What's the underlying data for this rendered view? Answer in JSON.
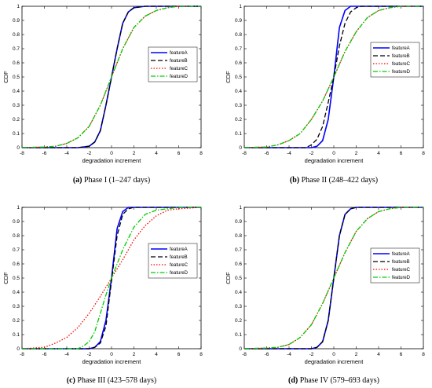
{
  "chart_data": [
    {
      "type": "line",
      "caption_label": "(a)",
      "caption_text": " Phase I (1–247 days)",
      "xlabel": "degradation increment",
      "ylabel": "CDF",
      "xlim": [
        -8,
        8
      ],
      "ylim": [
        0,
        1
      ],
      "xticks": [
        "-8",
        "-6",
        "-4",
        "-2",
        "0",
        "2",
        "4",
        "6",
        "8"
      ],
      "yticks": [
        "0",
        "0.1",
        "0.2",
        "0.3",
        "0.4",
        "0.5",
        "0.6",
        "0.7",
        "0.8",
        "0.9",
        "1"
      ],
      "grid": false,
      "legend_position": "right",
      "series": [
        {
          "name": "featureA",
          "color": "#0000ff",
          "style": "solid",
          "values": [
            [
              -8,
              0
            ],
            [
              -3,
              0
            ],
            [
              -2,
              0.01
            ],
            [
              -1.5,
              0.04
            ],
            [
              -1,
              0.12
            ],
            [
              -0.5,
              0.3
            ],
            [
              0,
              0.5
            ],
            [
              0.5,
              0.7
            ],
            [
              1,
              0.88
            ],
            [
              1.5,
              0.96
            ],
            [
              2,
              0.99
            ],
            [
              3,
              1
            ],
            [
              8,
              1
            ]
          ]
        },
        {
          "name": "featureB",
          "color": "#000000",
          "style": "dashed",
          "values": [
            [
              -8,
              0
            ],
            [
              -3,
              0
            ],
            [
              -2,
              0.01
            ],
            [
              -1.5,
              0.04
            ],
            [
              -1,
              0.12
            ],
            [
              -0.5,
              0.3
            ],
            [
              0,
              0.5
            ],
            [
              0.5,
              0.7
            ],
            [
              1,
              0.88
            ],
            [
              1.5,
              0.96
            ],
            [
              2,
              0.99
            ],
            [
              3,
              1
            ],
            [
              8,
              1
            ]
          ]
        },
        {
          "name": "featureC",
          "color": "#ff0000",
          "style": "dotted",
          "values": [
            [
              -8,
              0
            ],
            [
              -6,
              0.005
            ],
            [
              -5,
              0.01
            ],
            [
              -4,
              0.03
            ],
            [
              -3,
              0.07
            ],
            [
              -2,
              0.15
            ],
            [
              -1,
              0.3
            ],
            [
              0,
              0.5
            ],
            [
              1,
              0.7
            ],
            [
              2,
              0.85
            ],
            [
              3,
              0.93
            ],
            [
              4,
              0.97
            ],
            [
              5,
              0.99
            ],
            [
              6,
              1
            ],
            [
              8,
              1
            ]
          ]
        },
        {
          "name": "featureD",
          "color": "#00cc00",
          "style": "dashdot",
          "values": [
            [
              -8,
              0
            ],
            [
              -6,
              0.005
            ],
            [
              -5,
              0.01
            ],
            [
              -4,
              0.03
            ],
            [
              -3,
              0.07
            ],
            [
              -2,
              0.15
            ],
            [
              -1,
              0.3
            ],
            [
              0,
              0.5
            ],
            [
              1,
              0.7
            ],
            [
              2,
              0.85
            ],
            [
              3,
              0.93
            ],
            [
              4,
              0.97
            ],
            [
              5,
              0.99
            ],
            [
              6,
              1
            ],
            [
              8,
              1
            ]
          ]
        }
      ]
    },
    {
      "type": "line",
      "caption_label": "(b)",
      "caption_text": " Phase II (248–422 days)",
      "xlabel": "degradation increment",
      "ylabel": "CDF",
      "xlim": [
        -8,
        8
      ],
      "ylim": [
        0,
        1
      ],
      "xticks": [
        "-8",
        "-6",
        "-4",
        "-2",
        "0",
        "2",
        "4",
        "6",
        "8"
      ],
      "yticks": [
        "0",
        "0.1",
        "0.2",
        "0.3",
        "0.4",
        "0.5",
        "0.6",
        "0.7",
        "0.8",
        "0.9",
        "1"
      ],
      "grid": false,
      "legend_position": "top-right",
      "series": [
        {
          "name": "featureA",
          "color": "#0000ff",
          "style": "solid",
          "values": [
            [
              -8,
              0
            ],
            [
              -2,
              0
            ],
            [
              -1.5,
              0.01
            ],
            [
              -1,
              0.05
            ],
            [
              -0.5,
              0.2
            ],
            [
              0,
              0.5
            ],
            [
              0.5,
              0.85
            ],
            [
              1,
              0.97
            ],
            [
              1.5,
              1
            ],
            [
              8,
              1
            ]
          ]
        },
        {
          "name": "featureB",
          "color": "#000000",
          "style": "dashed",
          "values": [
            [
              -8,
              0
            ],
            [
              -2.5,
              0
            ],
            [
              -2,
              0.02
            ],
            [
              -1.5,
              0.06
            ],
            [
              -1,
              0.15
            ],
            [
              -0.5,
              0.32
            ],
            [
              0,
              0.5
            ],
            [
              0.5,
              0.72
            ],
            [
              1,
              0.88
            ],
            [
              1.5,
              0.96
            ],
            [
              2,
              0.99
            ],
            [
              2.5,
              1
            ],
            [
              8,
              1
            ]
          ]
        },
        {
          "name": "featureC",
          "color": "#ff0000",
          "style": "dotted",
          "values": [
            [
              -8,
              0
            ],
            [
              -6,
              0.005
            ],
            [
              -5,
              0.02
            ],
            [
              -4,
              0.05
            ],
            [
              -3,
              0.1
            ],
            [
              -2,
              0.2
            ],
            [
              -1,
              0.33
            ],
            [
              0,
              0.5
            ],
            [
              1,
              0.68
            ],
            [
              2,
              0.82
            ],
            [
              3,
              0.92
            ],
            [
              4,
              0.97
            ],
            [
              5,
              0.99
            ],
            [
              6,
              1
            ],
            [
              8,
              1
            ]
          ]
        },
        {
          "name": "featureD",
          "color": "#00cc00",
          "style": "dashdot",
          "values": [
            [
              -8,
              0
            ],
            [
              -6,
              0.005
            ],
            [
              -5,
              0.02
            ],
            [
              -4,
              0.05
            ],
            [
              -3,
              0.1
            ],
            [
              -2,
              0.2
            ],
            [
              -1,
              0.33
            ],
            [
              0,
              0.5
            ],
            [
              1,
              0.68
            ],
            [
              2,
              0.82
            ],
            [
              3,
              0.92
            ],
            [
              4,
              0.97
            ],
            [
              5,
              0.99
            ],
            [
              6,
              1
            ],
            [
              8,
              1
            ]
          ]
        }
      ]
    },
    {
      "type": "line",
      "caption_label": "(c)",
      "caption_text": " Phase III (423–578 days)",
      "xlabel": "degradation increment",
      "ylabel": "CDF",
      "xlim": [
        -8,
        8
      ],
      "ylim": [
        0,
        1
      ],
      "xticks": [
        "-8",
        "-6",
        "-4",
        "-2",
        "0",
        "2",
        "4",
        "6",
        "8"
      ],
      "yticks": [
        "0",
        "0.1",
        "0.2",
        "0.3",
        "0.4",
        "0.5",
        "0.6",
        "0.7",
        "0.8",
        "0.9",
        "1"
      ],
      "grid": false,
      "legend_position": "top-right",
      "series": [
        {
          "name": "featureA",
          "color": "#0000ff",
          "style": "solid",
          "values": [
            [
              -8,
              0
            ],
            [
              -2,
              0
            ],
            [
              -1.5,
              0.01
            ],
            [
              -1,
              0.05
            ],
            [
              -0.5,
              0.2
            ],
            [
              0,
              0.5
            ],
            [
              0.5,
              0.85
            ],
            [
              1,
              0.97
            ],
            [
              1.5,
              1
            ],
            [
              8,
              1
            ]
          ]
        },
        {
          "name": "featureB",
          "color": "#000000",
          "style": "dashed",
          "values": [
            [
              -8,
              0
            ],
            [
              -2,
              0
            ],
            [
              -1.5,
              0.01
            ],
            [
              -1,
              0.04
            ],
            [
              -0.5,
              0.16
            ],
            [
              0,
              0.48
            ],
            [
              0.5,
              0.8
            ],
            [
              1,
              0.95
            ],
            [
              1.5,
              0.99
            ],
            [
              2,
              1
            ],
            [
              8,
              1
            ]
          ]
        },
        {
          "name": "featureC",
          "color": "#ff0000",
          "style": "dotted",
          "values": [
            [
              -8,
              0
            ],
            [
              -7,
              0.005
            ],
            [
              -6,
              0.01
            ],
            [
              -5,
              0.04
            ],
            [
              -4,
              0.08
            ],
            [
              -3,
              0.15
            ],
            [
              -2,
              0.25
            ],
            [
              -1,
              0.37
            ],
            [
              0,
              0.5
            ],
            [
              1,
              0.63
            ],
            [
              2,
              0.77
            ],
            [
              3,
              0.87
            ],
            [
              4,
              0.94
            ],
            [
              5,
              0.98
            ],
            [
              6,
              0.99
            ],
            [
              8,
              1
            ]
          ]
        },
        {
          "name": "featureD",
          "color": "#00cc00",
          "style": "dashdot",
          "values": [
            [
              -8,
              0
            ],
            [
              -3,
              0
            ],
            [
              -2.5,
              0.02
            ],
            [
              -2,
              0.05
            ],
            [
              -1.5,
              0.12
            ],
            [
              -1,
              0.25
            ],
            [
              -0.5,
              0.38
            ],
            [
              0,
              0.5
            ],
            [
              1,
              0.7
            ],
            [
              2,
              0.86
            ],
            [
              3,
              0.95
            ],
            [
              4,
              0.98
            ],
            [
              5,
              0.99
            ],
            [
              6,
              1
            ],
            [
              8,
              1
            ]
          ]
        }
      ]
    },
    {
      "type": "line",
      "caption_label": "(d)",
      "caption_text": " Phase IV (579–693 days)",
      "xlabel": "degradation increment",
      "ylabel": "CDF",
      "xlim": [
        -8,
        8
      ],
      "ylim": [
        0,
        1
      ],
      "xticks": [
        "-8",
        "-6",
        "-4",
        "-2",
        "0",
        "2",
        "4",
        "6",
        "8"
      ],
      "yticks": [
        "0",
        "0.1",
        "0.2",
        "0.3",
        "0.4",
        "0.5",
        "0.6",
        "0.7",
        "0.8",
        "0.9",
        "1"
      ],
      "grid": false,
      "legend_position": "right",
      "series": [
        {
          "name": "featureA",
          "color": "#0000ff",
          "style": "solid",
          "values": [
            [
              -8,
              0
            ],
            [
              -2,
              0
            ],
            [
              -1.5,
              0.01
            ],
            [
              -1,
              0.05
            ],
            [
              -0.5,
              0.2
            ],
            [
              0,
              0.5
            ],
            [
              0.5,
              0.8
            ],
            [
              1,
              0.95
            ],
            [
              1.5,
              0.99
            ],
            [
              2,
              1
            ],
            [
              8,
              1
            ]
          ]
        },
        {
          "name": "featureB",
          "color": "#000000",
          "style": "dashed",
          "values": [
            [
              -8,
              0
            ],
            [
              -2,
              0
            ],
            [
              -1.5,
              0.01
            ],
            [
              -1,
              0.05
            ],
            [
              -0.5,
              0.2
            ],
            [
              0,
              0.5
            ],
            [
              0.5,
              0.8
            ],
            [
              1,
              0.95
            ],
            [
              1.5,
              0.99
            ],
            [
              2,
              1
            ],
            [
              8,
              1
            ]
          ]
        },
        {
          "name": "featureC",
          "color": "#ff0000",
          "style": "dotted",
          "values": [
            [
              -8,
              0
            ],
            [
              -6,
              0.005
            ],
            [
              -5,
              0.01
            ],
            [
              -4,
              0.03
            ],
            [
              -3,
              0.08
            ],
            [
              -2,
              0.17
            ],
            [
              -1,
              0.32
            ],
            [
              0,
              0.5
            ],
            [
              1,
              0.68
            ],
            [
              2,
              0.83
            ],
            [
              3,
              0.92
            ],
            [
              4,
              0.97
            ],
            [
              5,
              0.99
            ],
            [
              6,
              1
            ],
            [
              8,
              1
            ]
          ]
        },
        {
          "name": "featureD",
          "color": "#00cc00",
          "style": "dashdot",
          "values": [
            [
              -8,
              0
            ],
            [
              -6,
              0.005
            ],
            [
              -5,
              0.01
            ],
            [
              -4,
              0.03
            ],
            [
              -3,
              0.08
            ],
            [
              -2,
              0.17
            ],
            [
              -1,
              0.32
            ],
            [
              0,
              0.5
            ],
            [
              1,
              0.68
            ],
            [
              2,
              0.83
            ],
            [
              3,
              0.92
            ],
            [
              4,
              0.97
            ],
            [
              5,
              0.99
            ],
            [
              6,
              1
            ],
            [
              8,
              1
            ]
          ]
        }
      ]
    }
  ]
}
